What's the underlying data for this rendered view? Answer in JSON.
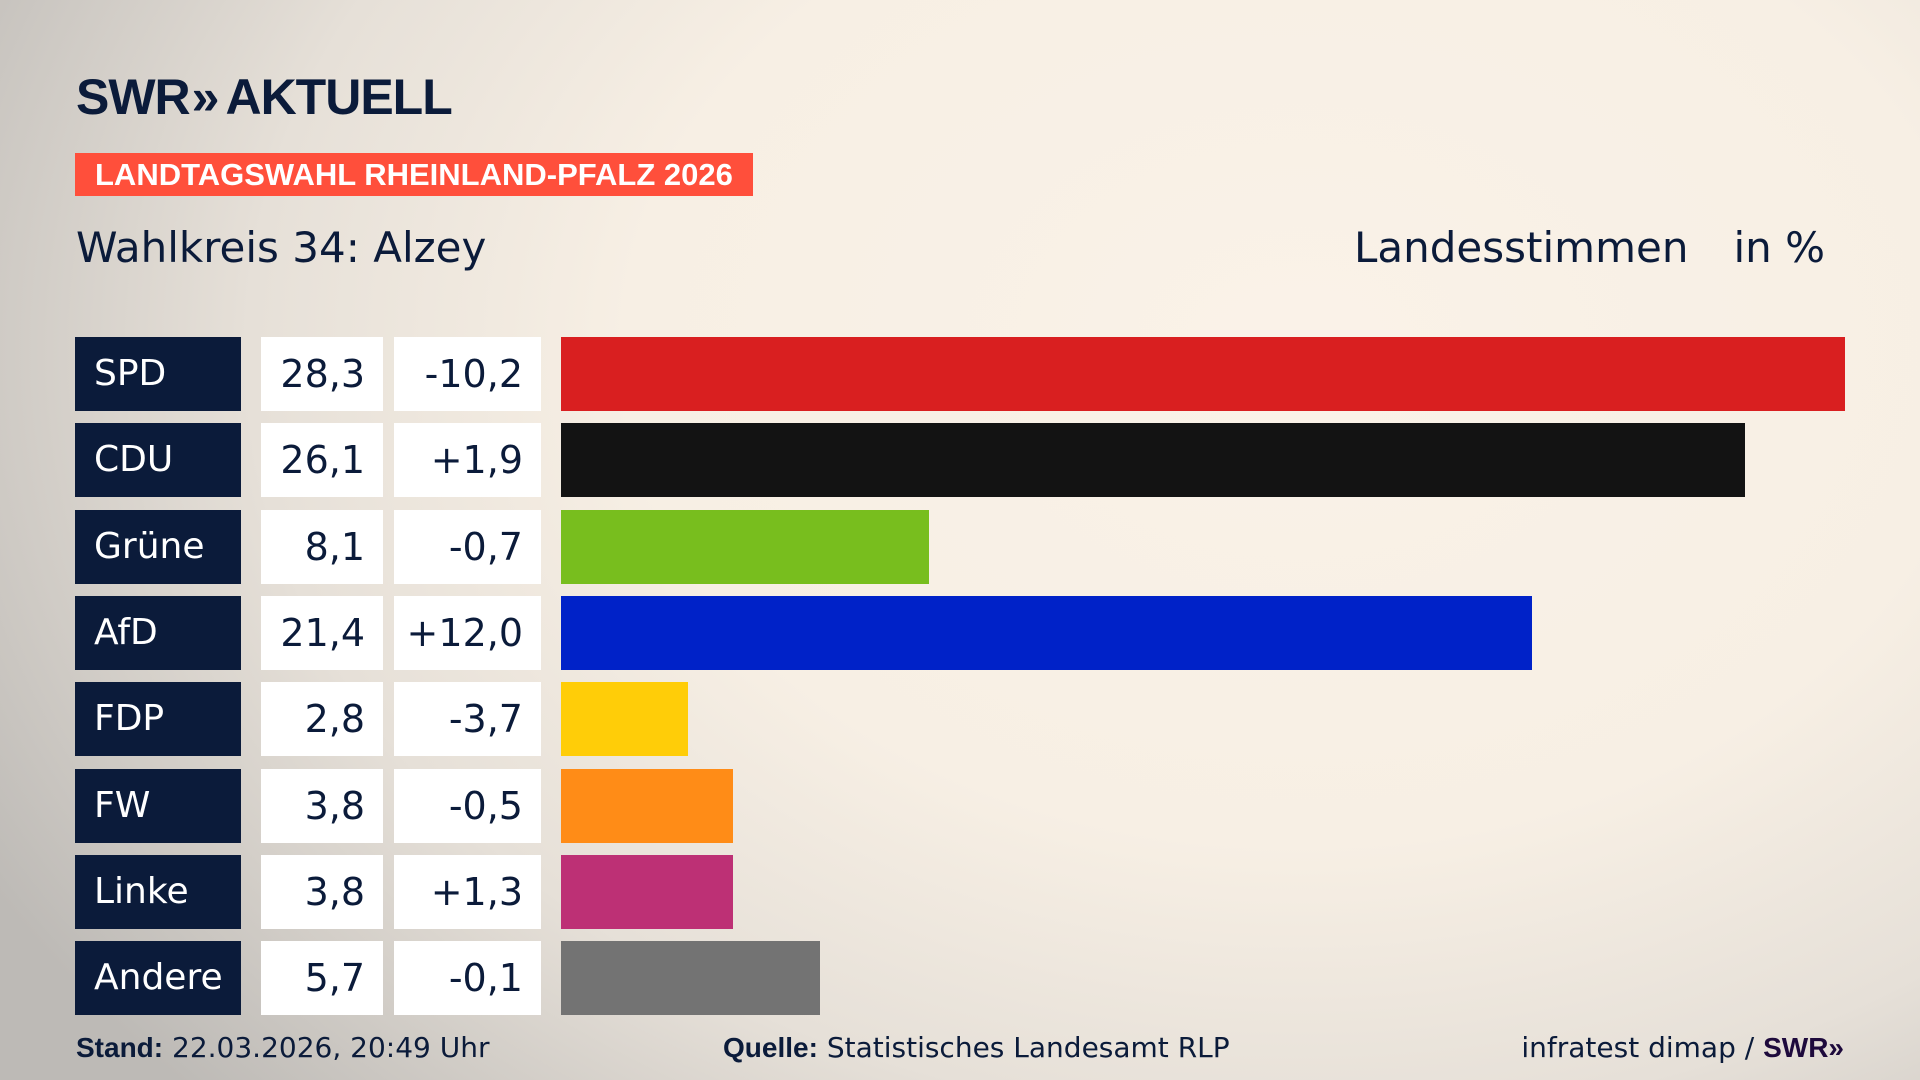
{
  "header": {
    "logo_text": "SWR",
    "logo_chevron": "»",
    "logo_suffix": "AKTUELL",
    "banner": "LANDTAGSWAHL RHEINLAND-PFALZ 2026",
    "subtitle": "Wahlkreis 34: Alzey",
    "measure": "Landesstimmen",
    "unit": "in %"
  },
  "chart_data": {
    "type": "bar",
    "orientation": "horizontal",
    "categories": [
      "SPD",
      "CDU",
      "Grüne",
      "AfD",
      "FDP",
      "FW",
      "Linke",
      "Andere"
    ],
    "values": [
      28.3,
      26.1,
      8.1,
      21.4,
      2.8,
      3.8,
      3.8,
      5.7
    ],
    "value_labels": [
      "28,3",
      "26,1",
      "8,1",
      "21,4",
      "2,8",
      "3,8",
      "3,8",
      "5,7"
    ],
    "change_labels": [
      "-10,2",
      "+1,9",
      "-0,7",
      "+12,0",
      "-3,7",
      "-0,5",
      "+1,3",
      "-0,1"
    ],
    "changes": [
      -10.2,
      1.9,
      -0.7,
      12.0,
      -3.7,
      -0.5,
      1.3,
      -0.1
    ],
    "colors": [
      "#d91f20",
      "#131313",
      "#78be1e",
      "#0022c8",
      "#ffcd08",
      "#ff8c17",
      "#bd3075",
      "#737373"
    ],
    "unit": "%",
    "grid": false
  },
  "footer": {
    "stand_label": "Stand:",
    "stand_value": "22.03.2026, 20:49 Uhr",
    "source_label": "Quelle:",
    "source_value": "Statistisches Landesamt RLP",
    "credit": "infratest dimap /",
    "credit_logo": "SWR»"
  }
}
